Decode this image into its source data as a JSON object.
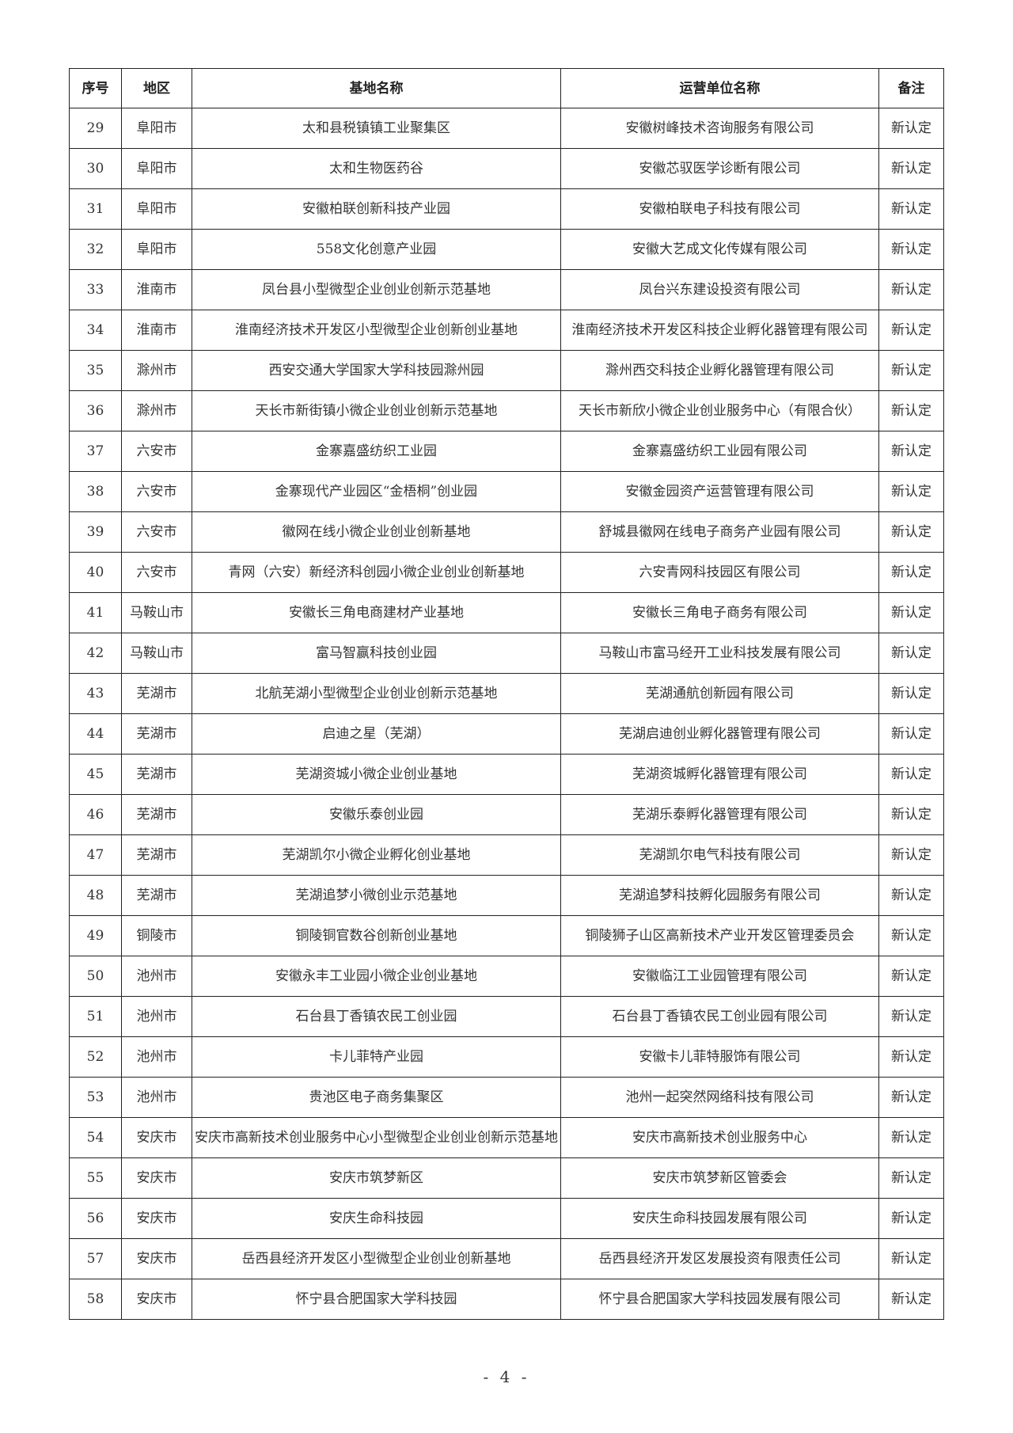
{
  "table": {
    "headers": [
      "序号",
      "地区",
      "基地名称",
      "运营单位名称",
      "备注"
    ],
    "rows": [
      [
        "29",
        "阜阳市",
        "太和县税镇镇工业聚集区",
        "安徽树峰技术咨询服务有限公司",
        "新认定"
      ],
      [
        "30",
        "阜阳市",
        "太和生物医药谷",
        "安徽芯驭医学诊断有限公司",
        "新认定"
      ],
      [
        "31",
        "阜阳市",
        "安徽柏联创新科技产业园",
        "安徽柏联电子科技有限公司",
        "新认定"
      ],
      [
        "32",
        "阜阳市",
        "558文化创意产业园",
        "安徽大艺成文化传媒有限公司",
        "新认定"
      ],
      [
        "33",
        "淮南市",
        "凤台县小型微型企业创业创新示范基地",
        "凤台兴东建设投资有限公司",
        "新认定"
      ],
      [
        "34",
        "淮南市",
        "淮南经济技术开发区小型微型企业创新创业基地",
        "淮南经济技术开发区科技企业孵化器管理有限公司",
        "新认定"
      ],
      [
        "35",
        "滁州市",
        "西安交通大学国家大学科技园滁州园",
        "滁州西交科技企业孵化器管理有限公司",
        "新认定"
      ],
      [
        "36",
        "滁州市",
        "天长市新街镇小微企业创业创新示范基地",
        "天长市新欣小微企业创业服务中心（有限合伙）",
        "新认定"
      ],
      [
        "37",
        "六安市",
        "金寨嘉盛纺织工业园",
        "金寨嘉盛纺织工业园有限公司",
        "新认定"
      ],
      [
        "38",
        "六安市",
        "金寨现代产业园区“金梧桐”创业园",
        "安徽金园资产运营管理有限公司",
        "新认定"
      ],
      [
        "39",
        "六安市",
        "徽网在线小微企业创业创新基地",
        "舒城县徽网在线电子商务产业园有限公司",
        "新认定"
      ],
      [
        "40",
        "六安市",
        "青网（六安）新经济科创园小微企业创业创新基地",
        "六安青网科技园区有限公司",
        "新认定"
      ],
      [
        "41",
        "马鞍山市",
        "安徽长三角电商建材产业基地",
        "安徽长三角电子商务有限公司",
        "新认定"
      ],
      [
        "42",
        "马鞍山市",
        "富马智赢科技创业园",
        "马鞍山市富马经开工业科技发展有限公司",
        "新认定"
      ],
      [
        "43",
        "芜湖市",
        "北航芜湖小型微型企业创业创新示范基地",
        "芜湖通航创新园有限公司",
        "新认定"
      ],
      [
        "44",
        "芜湖市",
        "启迪之星（芜湖）",
        "芜湖启迪创业孵化器管理有限公司",
        "新认定"
      ],
      [
        "45",
        "芜湖市",
        "芜湖资城小微企业创业基地",
        "芜湖资城孵化器管理有限公司",
        "新认定"
      ],
      [
        "46",
        "芜湖市",
        "安徽乐泰创业园",
        "芜湖乐泰孵化器管理有限公司",
        "新认定"
      ],
      [
        "47",
        "芜湖市",
        "芜湖凯尔小微企业孵化创业基地",
        "芜湖凯尔电气科技有限公司",
        "新认定"
      ],
      [
        "48",
        "芜湖市",
        "芜湖追梦小微创业示范基地",
        "芜湖追梦科技孵化园服务有限公司",
        "新认定"
      ],
      [
        "49",
        "铜陵市",
        "铜陵铜官数谷创新创业基地",
        "铜陵狮子山区高新技术产业开发区管理委员会",
        "新认定"
      ],
      [
        "50",
        "池州市",
        "安徽永丰工业园小微企业创业基地",
        "安徽临江工业园管理有限公司",
        "新认定"
      ],
      [
        "51",
        "池州市",
        "石台县丁香镇农民工创业园",
        "石台县丁香镇农民工创业园有限公司",
        "新认定"
      ],
      [
        "52",
        "池州市",
        "卡儿菲特产业园",
        "安徽卡儿菲特服饰有限公司",
        "新认定"
      ],
      [
        "53",
        "池州市",
        "贵池区电子商务集聚区",
        "池州一起突然网络科技有限公司",
        "新认定"
      ],
      [
        "54",
        "安庆市",
        "安庆市高新技术创业服务中心小型微型企业创业创新示范基地",
        "安庆市高新技术创业服务中心",
        "新认定"
      ],
      [
        "55",
        "安庆市",
        "安庆市筑梦新区",
        "安庆市筑梦新区管委会",
        "新认定"
      ],
      [
        "56",
        "安庆市",
        "安庆生命科技园",
        "安庆生命科技园发展有限公司",
        "新认定"
      ],
      [
        "57",
        "安庆市",
        "岳西县经济开发区小型微型企业创业创新基地",
        "岳西县经济开发区发展投资有限责任公司",
        "新认定"
      ],
      [
        "58",
        "安庆市",
        "怀宁县合肥国家大学科技园",
        "怀宁县合肥国家大学科技园发展有限公司",
        "新认定"
      ]
    ]
  },
  "page_number": "- 4 -"
}
